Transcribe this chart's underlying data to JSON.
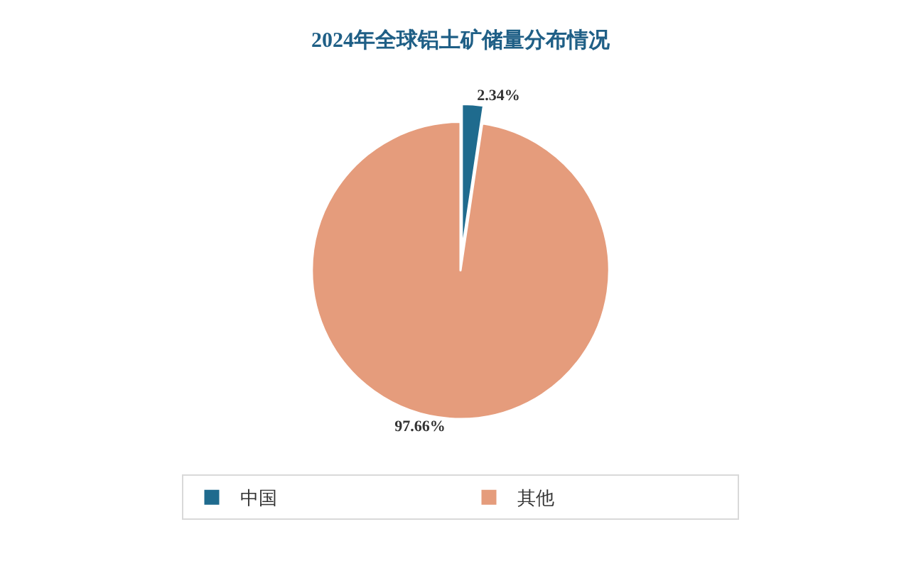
{
  "chart_data": {
    "type": "pie",
    "title": "2024年全球铝土矿储量分布情况",
    "categories": [
      "中国",
      "其他"
    ],
    "values": [
      2.34,
      97.66
    ],
    "colors": [
      "#1f6b8e",
      "#e59c7c"
    ],
    "value_labels": [
      "2.34%",
      "97.66%"
    ],
    "legend": "bottom"
  }
}
